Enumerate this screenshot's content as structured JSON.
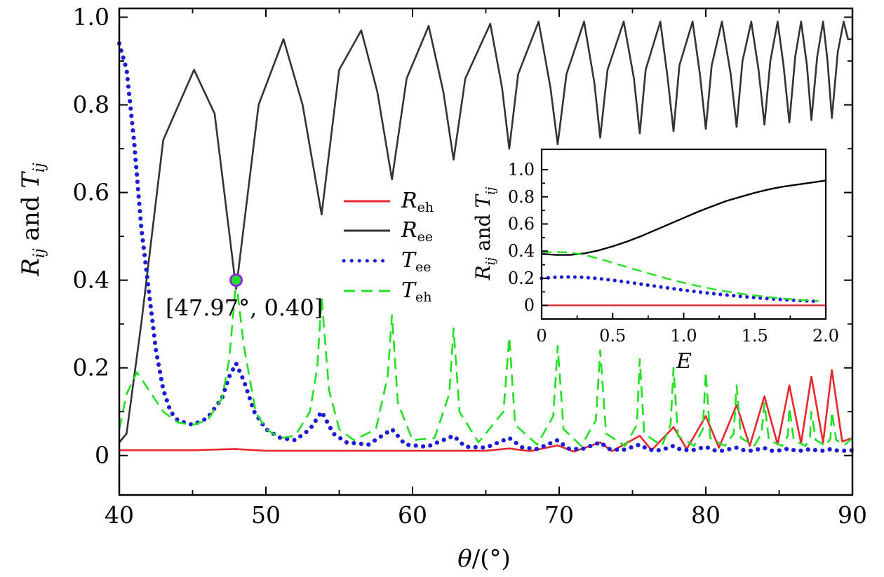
{
  "chart_data": [
    {
      "type": "line",
      "xlabel": "θ/(°)",
      "ylabel": "R_ij and T_ij",
      "xlim": [
        40,
        90
      ],
      "ylim": [
        -0.09,
        1.02
      ],
      "xticks": [
        "40",
        "50",
        "60",
        "70",
        "80",
        "90"
      ],
      "yticks": [
        "0",
        "0.2",
        "0.4",
        "0.6",
        "0.8",
        "1.0"
      ],
      "yticks_values": [
        0,
        0.2,
        0.4,
        0.6,
        0.8,
        1.0
      ],
      "xticks_values": [
        40,
        50,
        60,
        70,
        80,
        90
      ],
      "legend_placement": "center",
      "series": [
        {
          "name": "R_eh",
          "color": "#e8262d",
          "style": "solid",
          "x": [
            40,
            45,
            47.9,
            50,
            55,
            60,
            65,
            66.6,
            68,
            69.9,
            71,
            72.8,
            73.6,
            75.5,
            76.3,
            77.8,
            78.7,
            80.0,
            80.9,
            82.1,
            83.0,
            84.0,
            84.9,
            85.7,
            86.5,
            87.2,
            88.0,
            88.6,
            89.3,
            90
          ],
          "y": [
            0.012,
            0.012,
            0.015,
            0.011,
            0.011,
            0.011,
            0.011,
            0.016,
            0.01,
            0.023,
            0.009,
            0.03,
            0.01,
            0.045,
            0.012,
            0.065,
            0.015,
            0.09,
            0.018,
            0.115,
            0.022,
            0.135,
            0.025,
            0.16,
            0.028,
            0.18,
            0.03,
            0.195,
            0.032,
            0.04
          ]
        },
        {
          "name": "R_ee",
          "color": "#333333",
          "style": "solid",
          "x": [
            40,
            40.5,
            41.5,
            43,
            45.1,
            46.5,
            47.97,
            49.5,
            51.2,
            52.5,
            53.8,
            55,
            56.5,
            57.6,
            58.6,
            59.6,
            61.1,
            62.1,
            62.8,
            63.6,
            65.3,
            66.1,
            66.6,
            67.2,
            68.6,
            69.4,
            69.9,
            70.5,
            71.7,
            72.4,
            72.8,
            73.3,
            74.4,
            75.1,
            75.5,
            75.9,
            76.9,
            77.4,
            77.8,
            78.2,
            79.1,
            79.6,
            80.0,
            80.4,
            81.1,
            81.7,
            82.1,
            82.5,
            83.1,
            83.6,
            84.0,
            84.4,
            84.9,
            85.3,
            85.7,
            86.1,
            86.5,
            86.9,
            87.2,
            87.6,
            88.0,
            88.3,
            88.6,
            89.0,
            89.4,
            89.7,
            90
          ],
          "y": [
            0.03,
            0.05,
            0.3,
            0.72,
            0.88,
            0.78,
            0.38,
            0.8,
            0.95,
            0.8,
            0.55,
            0.88,
            0.97,
            0.83,
            0.63,
            0.86,
            0.98,
            0.83,
            0.675,
            0.86,
            0.985,
            0.84,
            0.7,
            0.87,
            0.99,
            0.84,
            0.71,
            0.87,
            0.99,
            0.85,
            0.725,
            0.88,
            0.99,
            0.86,
            0.735,
            0.88,
            0.99,
            0.86,
            0.74,
            0.89,
            0.99,
            0.87,
            0.745,
            0.89,
            0.99,
            0.87,
            0.75,
            0.9,
            0.99,
            0.88,
            0.755,
            0.9,
            0.99,
            0.89,
            0.76,
            0.91,
            0.99,
            0.89,
            0.765,
            0.91,
            0.99,
            0.9,
            0.77,
            0.92,
            0.99,
            0.95,
            0.95
          ]
        },
        {
          "name": "T_ee",
          "color": "#1c1cd6",
          "style": "dotted",
          "x": [
            40,
            40.5,
            41,
            41.5,
            42,
            42.5,
            43,
            43.5,
            44,
            45,
            46,
            47,
            47.5,
            47.97,
            48.5,
            49.2,
            50,
            51,
            52,
            53,
            53.8,
            54.6,
            55.5,
            57,
            58.6,
            59.5,
            61,
            62.8,
            63.6,
            65,
            66.6,
            67.5,
            68.5,
            69.9,
            70.6,
            71.5,
            72.8,
            73.4,
            74.3,
            75.5,
            76.1,
            76.9,
            77.8,
            78.3,
            79.1,
            80.0,
            80.5,
            81.1,
            82.1,
            82.6,
            83.1,
            84.0,
            84.4,
            84.9,
            85.7,
            86.1,
            86.5,
            87.2,
            87.6,
            88.0,
            88.6,
            89.0,
            89.5,
            90
          ],
          "y": [
            0.94,
            0.88,
            0.72,
            0.52,
            0.38,
            0.24,
            0.15,
            0.1,
            0.08,
            0.07,
            0.085,
            0.13,
            0.18,
            0.21,
            0.17,
            0.1,
            0.06,
            0.04,
            0.035,
            0.06,
            0.1,
            0.05,
            0.03,
            0.025,
            0.06,
            0.025,
            0.02,
            0.045,
            0.02,
            0.018,
            0.04,
            0.018,
            0.015,
            0.035,
            0.016,
            0.014,
            0.03,
            0.015,
            0.012,
            0.025,
            0.013,
            0.012,
            0.022,
            0.013,
            0.012,
            0.02,
            0.012,
            0.011,
            0.018,
            0.012,
            0.011,
            0.017,
            0.011,
            0.011,
            0.016,
            0.011,
            0.011,
            0.015,
            0.011,
            0.011,
            0.015,
            0.011,
            0.011,
            0.012
          ]
        },
        {
          "name": "T_eh",
          "color": "#22e022",
          "style": "dashed",
          "x": [
            40,
            40.5,
            41.2,
            42,
            43,
            44,
            45,
            46,
            47,
            47.5,
            47.97,
            48.5,
            49.3,
            50,
            51,
            52,
            53,
            53.5,
            53.8,
            54.3,
            55,
            56,
            57.5,
            58.3,
            58.6,
            59.0,
            60,
            61.5,
            62.5,
            62.8,
            63.2,
            64.5,
            66.2,
            66.6,
            67.0,
            68.5,
            69.6,
            69.9,
            70.3,
            71.5,
            72.5,
            72.8,
            73.2,
            74.5,
            75.3,
            75.5,
            75.8,
            77.0,
            77.6,
            77.8,
            78.1,
            79.2,
            79.8,
            80.0,
            80.3,
            81.3,
            81.9,
            82.1,
            82.4,
            83.3,
            83.8,
            84.0,
            84.3,
            85.2,
            85.6,
            85.7,
            86.0,
            86.8,
            87.1,
            87.2,
            87.5,
            88.2,
            88.5,
            88.6,
            88.9,
            89.5,
            90
          ],
          "y": [
            0.06,
            0.14,
            0.19,
            0.15,
            0.1,
            0.075,
            0.07,
            0.08,
            0.13,
            0.22,
            0.4,
            0.25,
            0.1,
            0.06,
            0.04,
            0.045,
            0.1,
            0.2,
            0.36,
            0.15,
            0.06,
            0.035,
            0.06,
            0.18,
            0.32,
            0.12,
            0.035,
            0.04,
            0.14,
            0.29,
            0.1,
            0.03,
            0.1,
            0.27,
            0.07,
            0.025,
            0.09,
            0.25,
            0.06,
            0.022,
            0.08,
            0.24,
            0.05,
            0.022,
            0.07,
            0.22,
            0.05,
            0.022,
            0.07,
            0.2,
            0.045,
            0.022,
            0.06,
            0.19,
            0.04,
            0.022,
            0.05,
            0.16,
            0.04,
            0.022,
            0.05,
            0.12,
            0.035,
            0.022,
            0.045,
            0.11,
            0.035,
            0.022,
            0.04,
            0.1,
            0.035,
            0.022,
            0.04,
            0.1,
            0.035,
            0.025,
            0.04
          ]
        }
      ],
      "highlight_point": {
        "x": 47.97,
        "y": 0.4,
        "fill": "#22e022",
        "stroke": "#8a2be2"
      },
      "annotation": "[47.97°, 0.40]"
    },
    {
      "type": "line",
      "xlabel": "E",
      "ylabel": "R_ij and T_ij",
      "xlim": [
        0,
        2
      ],
      "ylim": [
        -0.1,
        1.15
      ],
      "xticks": [
        "0",
        "0.5",
        "1.0",
        "1.5",
        "2.0"
      ],
      "xticks_values": [
        0,
        0.5,
        1.0,
        1.5,
        2.0
      ],
      "yticks": [
        "0",
        "0.2",
        "0.4",
        "0.6",
        "0.8",
        "1.0"
      ],
      "yticks_values": [
        0,
        0.2,
        0.4,
        0.6,
        0.8,
        1.0
      ],
      "series": [
        {
          "name": "R_eh",
          "color": "#e8262d",
          "style": "solid",
          "x": [
            0,
            2
          ],
          "y": [
            0,
            0
          ]
        },
        {
          "name": "R_ee",
          "color": "#000000",
          "style": "solid",
          "x": [
            0,
            0.1,
            0.2,
            0.3,
            0.4,
            0.5,
            0.6,
            0.7,
            0.8,
            0.9,
            1.0,
            1.1,
            1.2,
            1.3,
            1.4,
            1.5,
            1.6,
            1.7,
            1.8,
            1.9,
            2.0
          ],
          "y": [
            0.38,
            0.372,
            0.372,
            0.383,
            0.405,
            0.435,
            0.47,
            0.51,
            0.555,
            0.6,
            0.645,
            0.69,
            0.73,
            0.77,
            0.8,
            0.83,
            0.855,
            0.875,
            0.89,
            0.905,
            0.92
          ]
        },
        {
          "name": "T_ee",
          "color": "#1c1cd6",
          "style": "dotted",
          "x": [
            0,
            0.1,
            0.2,
            0.3,
            0.4,
            0.5,
            0.6,
            0.7,
            0.8,
            0.9,
            1.0,
            1.1,
            1.2,
            1.3,
            1.4,
            1.5,
            1.6,
            1.7,
            1.8,
            1.9,
            1.95
          ],
          "y": [
            0.2,
            0.208,
            0.21,
            0.207,
            0.198,
            0.186,
            0.172,
            0.157,
            0.142,
            0.127,
            0.113,
            0.1,
            0.088,
            0.077,
            0.067,
            0.058,
            0.05,
            0.043,
            0.037,
            0.032,
            0.03
          ]
        },
        {
          "name": "T_eh",
          "color": "#22e022",
          "style": "dashed",
          "x": [
            0,
            0.1,
            0.2,
            0.3,
            0.4,
            0.5,
            0.6,
            0.7,
            0.8,
            0.9,
            1.0,
            1.1,
            1.2,
            1.3,
            1.4,
            1.5,
            1.6,
            1.7,
            1.8,
            1.9,
            1.95
          ],
          "y": [
            0.39,
            0.395,
            0.39,
            0.372,
            0.345,
            0.315,
            0.283,
            0.252,
            0.222,
            0.193,
            0.167,
            0.143,
            0.122,
            0.103,
            0.087,
            0.073,
            0.061,
            0.051,
            0.042,
            0.035,
            0.032
          ]
        }
      ]
    }
  ]
}
